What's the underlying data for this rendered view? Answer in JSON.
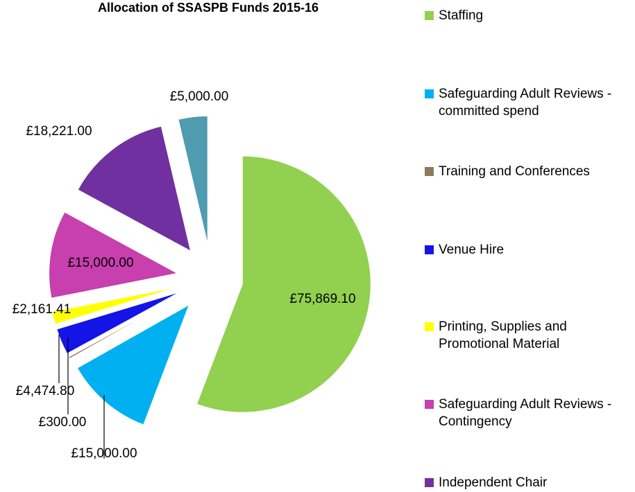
{
  "chart_data": {
    "type": "pie",
    "title": "Allocation of SSASPB Funds 2015-16",
    "categories": [
      "Staffing",
      "Safeguarding Adult Reviews - committed spend",
      "Training and Conferences",
      "Venue Hire",
      "Printing, Supplies and Promotional Material",
      "Safeguarding Adult Reviews - Contingency",
      "Independent Chair",
      null
    ],
    "values": [
      75869.1,
      15000,
      300,
      4474.8,
      2161.41,
      15000,
      18221,
      5000
    ],
    "value_labels": [
      "£75,869.10",
      "£15,000.00",
      "£300.00",
      "£4,474.80",
      "£2,161.41",
      "£15,000.00",
      "£18,221.00",
      "£5,000.00"
    ],
    "colors": [
      "#92d050",
      "#00b0f0",
      "#8c7b5a",
      "#1414e6",
      "#ffff00",
      "#c83fae",
      "#7030a0",
      "#4f9bb0"
    ]
  }
}
